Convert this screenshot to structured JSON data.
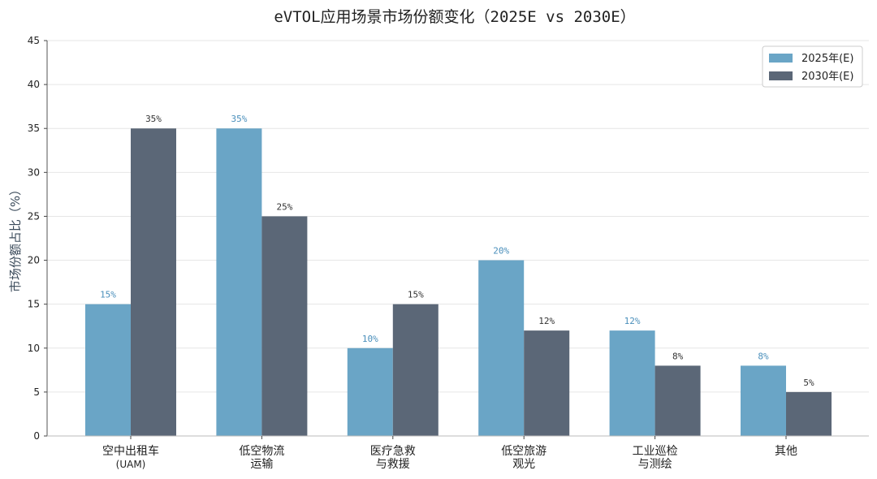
{
  "colors": {
    "series_2025": "#6aa5c6",
    "series_2030": "#5b6777"
  },
  "chart_data": {
    "type": "bar",
    "title": "eVTOL应用场景市场份额变化（2025E vs 2030E）",
    "xlabel": "",
    "ylabel": "市场份额占比（%）",
    "ylim": [
      0,
      45
    ],
    "yticks": [
      0,
      5,
      10,
      15,
      20,
      25,
      30,
      35,
      40,
      45
    ],
    "grid": "horizontal",
    "legend_position": "top-right",
    "categories": [
      [
        "空中出租车",
        "(UAM)"
      ],
      [
        "低空物流",
        "运输"
      ],
      [
        "医疗急救",
        "与救援"
      ],
      [
        "低空旅游",
        "观光"
      ],
      [
        "工业巡检",
        "与测绘"
      ],
      [
        "其他"
      ]
    ],
    "series": [
      {
        "name": "2025年(E)",
        "values": [
          15,
          35,
          10,
          20,
          12,
          8
        ],
        "labels": [
          "15%",
          "35%",
          "10%",
          "20%",
          "12%",
          "8%"
        ]
      },
      {
        "name": "2030年(E)",
        "values": [
          35,
          25,
          15,
          12,
          8,
          5
        ],
        "labels": [
          "35%",
          "25%",
          "15%",
          "12%",
          "8%",
          "5%"
        ]
      }
    ]
  }
}
